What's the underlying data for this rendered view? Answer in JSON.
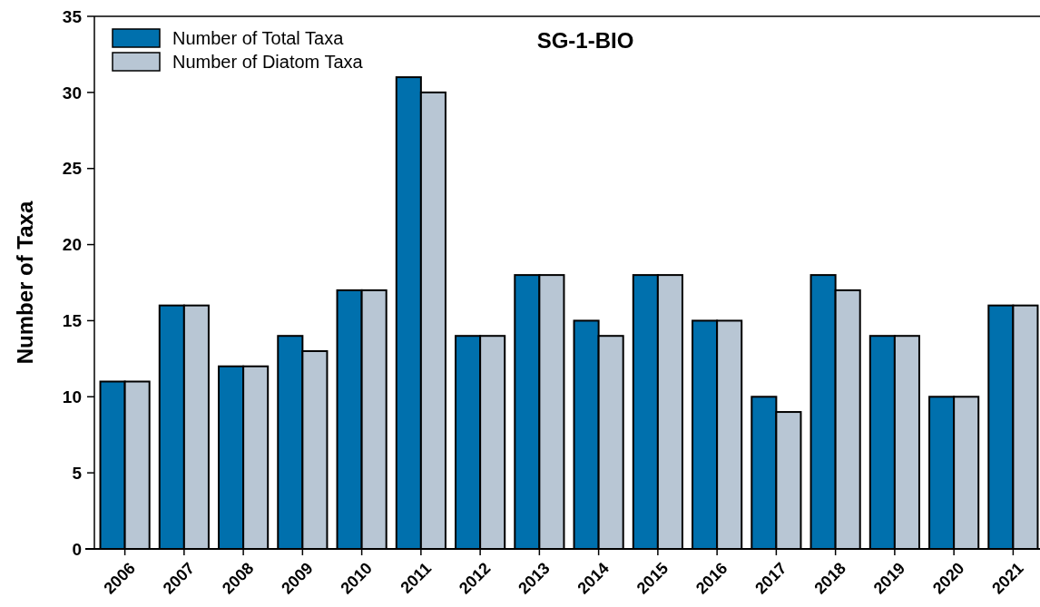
{
  "chart_data": {
    "type": "bar",
    "title": "SG-1-BIO",
    "ylabel": "Number of Taxa",
    "categories": [
      "2006",
      "2007",
      "2008",
      "2009",
      "2010",
      "2011",
      "2012",
      "2013",
      "2014",
      "2015",
      "2016",
      "2017",
      "2018",
      "2019",
      "2020",
      "2021"
    ],
    "series": [
      {
        "name": "Number of Total Taxa",
        "color": "#0070ad",
        "values": [
          11,
          16,
          12,
          14,
          17,
          31,
          14,
          18,
          15,
          18,
          15,
          10,
          18,
          14,
          10,
          16
        ]
      },
      {
        "name": "Number of Diatom Taxa",
        "color": "#b8c6d4",
        "values": [
          11,
          16,
          12,
          13,
          17,
          30,
          14,
          18,
          14,
          18,
          15,
          9,
          17,
          14,
          10,
          16
        ]
      }
    ],
    "ylim": [
      0,
      35
    ],
    "yticks": [
      0,
      5,
      10,
      15,
      20,
      25,
      30,
      35
    ],
    "grid": false,
    "legend": "top left"
  }
}
